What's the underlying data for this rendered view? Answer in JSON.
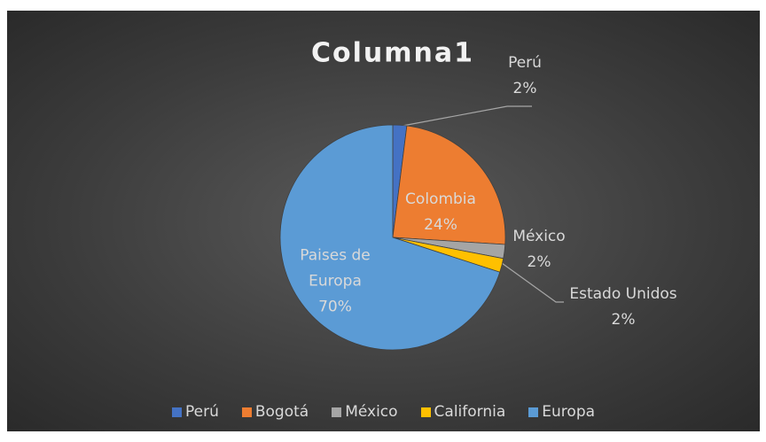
{
  "chart_data": {
    "type": "pie",
    "title": "Columna1",
    "categories": [
      "Perú",
      "Bogotá",
      "México",
      "California",
      "Europa"
    ],
    "values": [
      2,
      24,
      2,
      2,
      70
    ],
    "value_labels": [
      "2%",
      "24%",
      "2%",
      "2%",
      "70%"
    ],
    "label_names": [
      "Perú",
      "Colombia",
      "México",
      "Estado Unidos",
      "Paises de Europa"
    ],
    "colors": [
      "#4472c4",
      "#ed7d31",
      "#a5a5a5",
      "#ffc000",
      "#5b9bd5"
    ],
    "legend": "bottom"
  }
}
